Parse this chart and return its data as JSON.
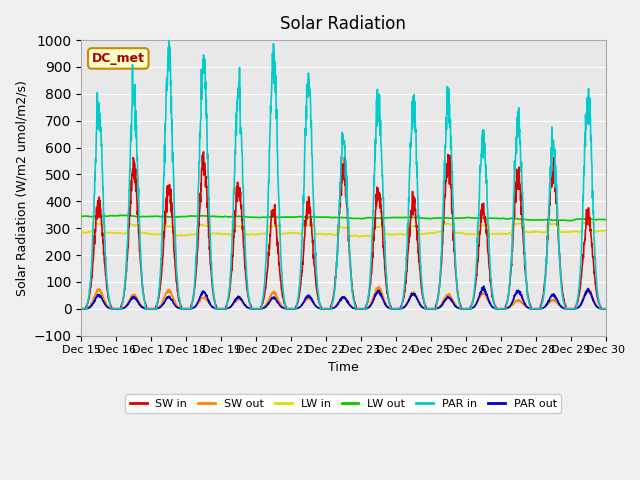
{
  "title": "Solar Radiation",
  "xlabel": "Time",
  "ylabel": "Solar Radiation (W/m2 umol/m2/s)",
  "ylim": [
    -100,
    1000
  ],
  "yticks": [
    -100,
    0,
    100,
    200,
    300,
    400,
    500,
    600,
    700,
    800,
    900,
    1000
  ],
  "x_start": 15,
  "x_end": 30,
  "x_ticks": [
    15,
    16,
    17,
    18,
    19,
    20,
    21,
    22,
    23,
    24,
    25,
    26,
    27,
    28,
    29,
    30
  ],
  "x_tick_labels": [
    "Dec 15",
    "Dec 16",
    "Dec 17",
    "Dec 18",
    "Dec 19",
    "Dec 20",
    "Dec 21",
    "Dec 22",
    "Dec 23",
    "Dec 24",
    "Dec 25",
    "Dec 26",
    "Dec 27",
    "Dec 28",
    "Dec 29",
    "Dec 30"
  ],
  "plot_bg_color": "#e8e8e8",
  "fig_bg_color": "#f0f0f0",
  "label_box_text": "DC_met",
  "label_box_facecolor": "#ffffcc",
  "label_box_edgecolor": "#cc8800",
  "label_box_textcolor": "#aa0000",
  "series": {
    "SW_in": {
      "color": "#dd0000",
      "linewidth": 1.2
    },
    "SW_out": {
      "color": "#ff8800",
      "linewidth": 1.2
    },
    "LW_in": {
      "color": "#dddd00",
      "linewidth": 1.2
    },
    "LW_out": {
      "color": "#00cc00",
      "linewidth": 1.2
    },
    "PAR_in": {
      "color": "#00cccc",
      "linewidth": 1.2
    },
    "PAR_out": {
      "color": "#0000cc",
      "linewidth": 1.2
    }
  },
  "legend": [
    {
      "label": "SW in",
      "color": "#dd0000"
    },
    {
      "label": "SW out",
      "color": "#ff8800"
    },
    {
      "label": "LW in",
      "color": "#dddd00"
    },
    {
      "label": "LW out",
      "color": "#00cc00"
    },
    {
      "label": "PAR in",
      "color": "#00cccc"
    },
    {
      "label": "PAR out",
      "color": "#0000cc"
    }
  ],
  "n_days": 15,
  "points_per_day": 144,
  "seed": 42
}
